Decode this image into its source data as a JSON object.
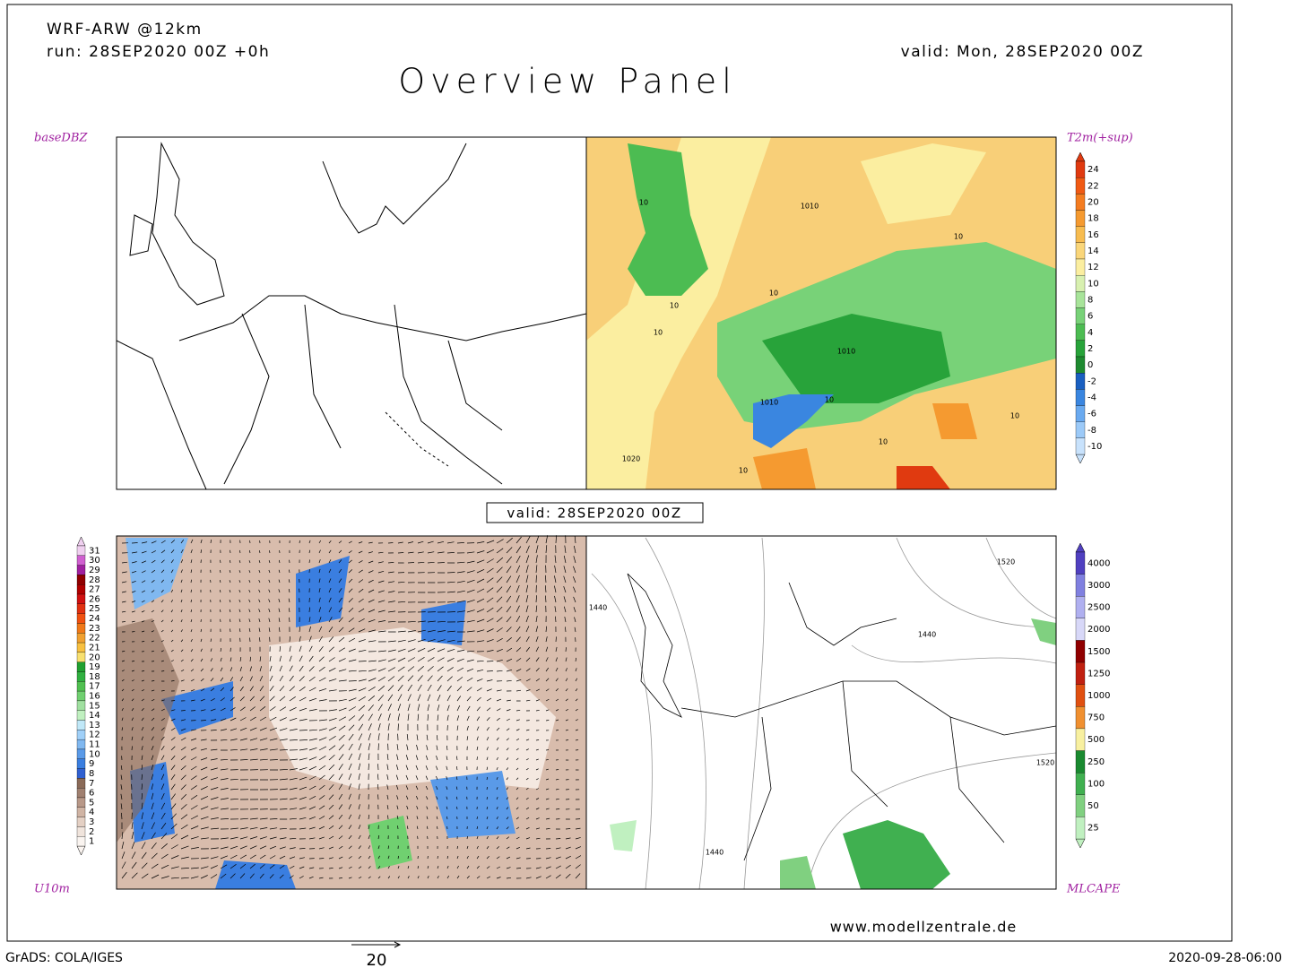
{
  "header": {
    "model": "WRF-ARW @12km",
    "run": "run: 28SEP2020 00Z +0h",
    "valid": "valid: Mon, 28SEP2020 00Z",
    "title": "Overview Panel"
  },
  "panels": {
    "top_left": "baseDBZ",
    "top_right": "T2m(+sup)",
    "bottom_left": "U10m",
    "bottom_right": "MLCAPE",
    "valid_box": "valid: 28SEP2020 00Z"
  },
  "t2m_contours": [
    "1010",
    "10",
    "10",
    "10",
    "10",
    "1010",
    "1010",
    "10",
    "10",
    "1020",
    "10",
    "10",
    "10"
  ],
  "cape_contours": [
    "1520",
    "1440",
    "1440",
    "1520",
    "1440"
  ],
  "colorbars": {
    "t2m": {
      "labels": [
        24,
        22,
        20,
        18,
        16,
        14,
        12,
        10,
        8,
        6,
        4,
        2,
        0,
        -2,
        -4,
        -6,
        -8,
        -10
      ],
      "colors": [
        "#e03a10",
        "#f05a14",
        "#f47c20",
        "#f59a30",
        "#f7bc50",
        "#fad67a",
        "#fbeea0",
        "#d8f0b0",
        "#a8e49a",
        "#78d278",
        "#4cbc52",
        "#28a33a",
        "#1e8a30",
        "#1a5fc0",
        "#3a86e0",
        "#6aaaf0",
        "#9ccaf8",
        "#c8e2fc"
      ]
    },
    "wind": {
      "labels": [
        31,
        30,
        29,
        28,
        27,
        26,
        25,
        24,
        23,
        22,
        21,
        20,
        19,
        18,
        17,
        16,
        15,
        14,
        13,
        12,
        11,
        10,
        9,
        8,
        7,
        6,
        5,
        4,
        3,
        2,
        1
      ],
      "colors": [
        "#f0d0f0",
        "#d060d0",
        "#a020a0",
        "#900000",
        "#b00000",
        "#d01010",
        "#e03010",
        "#f05010",
        "#f07818",
        "#f0a030",
        "#f8c040",
        "#f8e070",
        "#20a030",
        "#30b040",
        "#50c050",
        "#70d070",
        "#a0e0a0",
        "#c0f0c0",
        "#c0e8f8",
        "#a0d0f8",
        "#80b8f0",
        "#5a9ae8",
        "#3a7ee0",
        "#3060d0",
        "#8a6a58",
        "#a08070",
        "#b89888",
        "#d0b4a4",
        "#e4d0c4",
        "#f0e4dc",
        "#faf4f0"
      ]
    },
    "cape": {
      "labels": [
        4000,
        3000,
        2500,
        2000,
        1500,
        1250,
        1000,
        750,
        500,
        250,
        100,
        50,
        25
      ],
      "colors": [
        "#5040c0",
        "#8080e0",
        "#b0b0f0",
        "#d8d8f8",
        "#900000",
        "#c02010",
        "#e05010",
        "#f09030",
        "#f8f0a0",
        "#1a8a30",
        "#40b050",
        "#80d080",
        "#c0f0c0"
      ]
    }
  },
  "footer": {
    "site": "www.modellzentrale.de",
    "grads": "GrADS: COLA/IGES",
    "vector_scale": "20",
    "timestamp": "2020-09-28-06:00"
  }
}
